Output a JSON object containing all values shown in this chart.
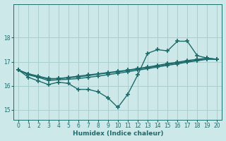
{
  "xlabel": "Humidex (Indice chaleur)",
  "bg_color": "#cce8e8",
  "grid_color": "#aacece",
  "line_color": "#1e6b6b",
  "xlim": [
    -0.5,
    20.5
  ],
  "ylim": [
    14.6,
    19.4
  ],
  "yticks": [
    15,
    16,
    17,
    18
  ],
  "xticks": [
    0,
    1,
    2,
    3,
    4,
    5,
    6,
    7,
    8,
    9,
    10,
    11,
    12,
    13,
    14,
    15,
    16,
    17,
    18,
    19,
    20
  ],
  "series": [
    [
      16.65,
      16.35,
      16.2,
      16.05,
      16.15,
      16.1,
      15.85,
      15.85,
      15.75,
      15.5,
      15.1,
      15.65,
      16.45,
      17.35,
      17.5,
      17.45,
      17.85,
      17.85,
      17.25,
      17.15,
      17.1
    ],
    [
      16.65,
      16.5,
      16.4,
      16.3,
      16.3,
      16.35,
      16.4,
      16.45,
      16.5,
      16.55,
      16.6,
      16.65,
      16.72,
      16.78,
      16.85,
      16.92,
      16.98,
      17.05,
      17.1,
      17.15,
      17.1
    ],
    [
      16.65,
      16.48,
      16.38,
      16.28,
      16.3,
      16.33,
      16.37,
      16.42,
      16.48,
      16.53,
      16.58,
      16.63,
      16.7,
      16.75,
      16.82,
      16.89,
      16.95,
      17.01,
      17.07,
      17.12,
      17.1
    ],
    [
      16.65,
      16.45,
      16.35,
      16.22,
      16.25,
      16.27,
      16.3,
      16.35,
      16.4,
      16.46,
      16.52,
      16.58,
      16.65,
      16.71,
      16.78,
      16.85,
      16.91,
      16.98,
      17.04,
      17.1,
      17.1
    ]
  ]
}
